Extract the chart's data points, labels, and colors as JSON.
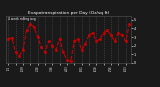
{
  "title": "Evapotranspiration per Day (Oz/sq ft)",
  "subtitle": "4 week rolling avg",
  "line_color": "#cc0000",
  "bg_color": "#1a1a1a",
  "plot_bg_color": "#1a1a1a",
  "title_color": "#ffffff",
  "tick_color": "#ffffff",
  "grid_color": "#555555",
  "y_values": [
    2.8,
    2.9,
    1.2,
    0.8,
    1.5,
    3.8,
    4.5,
    4.2,
    3.0,
    1.8,
    1.2,
    2.5,
    2.0,
    1.5,
    2.8,
    1.2,
    0.3,
    0.15,
    2.5,
    2.8,
    1.5,
    2.2,
    3.2,
    3.5,
    2.5,
    2.8,
    3.5,
    3.8,
    3.2,
    2.5,
    3.5,
    3.2,
    2.5,
    4.5
  ],
  "x_labels": [
    "1/1",
    "1/8",
    "1/15",
    "1/22",
    "1/29",
    "2/5",
    "2/12",
    "2/19",
    "2/26",
    "3/5",
    "3/12",
    "3/19",
    "3/26",
    "4/2",
    "4/9",
    "4/16",
    "4/23",
    "4/30",
    "5/7",
    "5/14",
    "5/21",
    "5/28",
    "6/4",
    "6/11",
    "6/18",
    "6/25",
    "7/2",
    "7/9",
    "7/16",
    "7/23",
    "7/30",
    "8/6",
    "8/13",
    "8/20"
  ],
  "ylim": [
    0,
    5.5
  ],
  "ytick_values": [
    0,
    1,
    2,
    3,
    4,
    5
  ]
}
